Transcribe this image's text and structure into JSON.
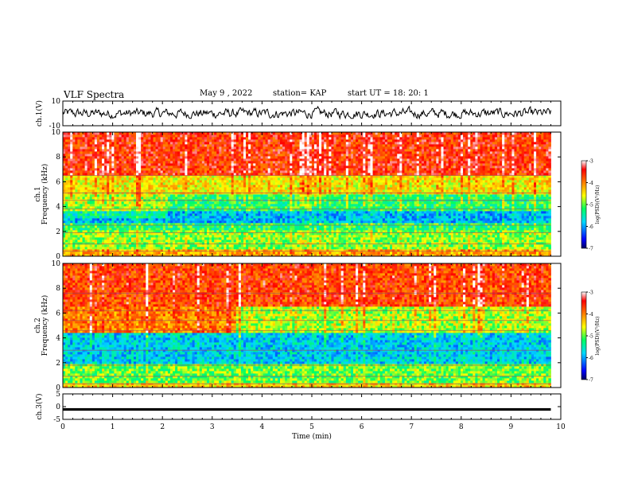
{
  "header": {
    "title": "VLF Spectra",
    "date": "May 9 , 2022",
    "station": "station= KAP",
    "start": "start UT = 18: 20: 1"
  },
  "chart_data": [
    {
      "type": "line",
      "panel": "ch1-waveform",
      "ylabel": "ch.1(V)",
      "ylim": [
        -10,
        10
      ],
      "yticks": [
        -10,
        10
      ],
      "xlim": [
        0,
        10
      ],
      "series": [
        {
          "values_summary": "noisy waveform fluctuating between about -3 and 5 V",
          "color": "#000000"
        }
      ]
    },
    {
      "type": "heatmap",
      "panel": "ch1-spectrogram",
      "ylabel": "ch.1\nFrequency (kHz)",
      "ylim": [
        0,
        10
      ],
      "yticks": [
        0,
        2,
        4,
        6,
        8,
        10
      ],
      "xlim": [
        0,
        9.8
      ],
      "colorbar": {
        "label": "log(PSD)(V²/Hz)",
        "range": [
          -7,
          -3
        ],
        "ticks": [
          -3,
          -4,
          -5,
          -6,
          -7
        ],
        "colors": [
          "#000080",
          "#0000ff",
          "#00c8ff",
          "#00ff64",
          "#ffff00",
          "#ff8000",
          "#ff0000",
          "#ffffff"
        ]
      },
      "notes": "dominant red/orange above 6 kHz, green-cyan 2-5 kHz with blue bands near 3 kHz, horizontal lines; regime change near t=2.1 min"
    },
    {
      "type": "heatmap",
      "panel": "ch2-spectrogram",
      "ylabel": "ch.2\nFrequency (kHz)",
      "ylim": [
        0,
        10
      ],
      "yticks": [
        0,
        2,
        4,
        6,
        8,
        10
      ],
      "xlim": [
        0,
        9.8
      ],
      "colorbar": {
        "label": "log(PSD)(V²/Hz)",
        "range": [
          -7,
          -3
        ],
        "ticks": [
          -3,
          -4,
          -5,
          -6,
          -7
        ]
      },
      "notes": "red/orange 6-10 kHz, yellow bands 4.5-6 kHz before t=3.5, blue 2-4 kHz, green below 2 kHz"
    },
    {
      "type": "line",
      "panel": "ch3-waveform",
      "ylabel": "ch.3(V)",
      "ylim": [
        -5,
        5
      ],
      "yticks": [
        -5,
        0,
        5
      ],
      "xlim": [
        0,
        10
      ],
      "xlabel": "Time (min)",
      "xticks": [
        0,
        1,
        2,
        3,
        4,
        5,
        6,
        7,
        8,
        9,
        10
      ],
      "series": [
        {
          "values_summary": "flat band near -1 V",
          "color": "#000000"
        }
      ]
    }
  ]
}
